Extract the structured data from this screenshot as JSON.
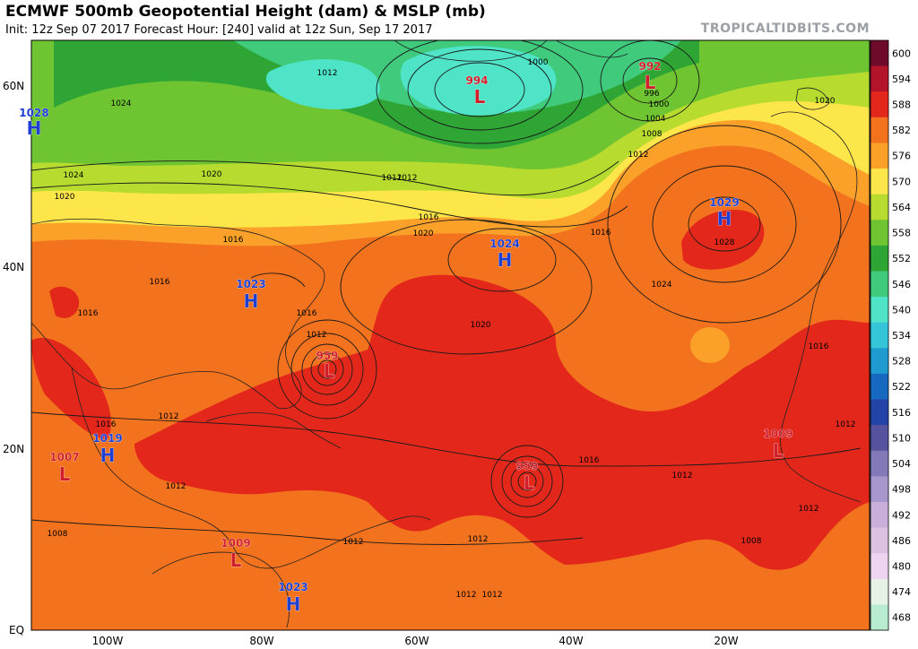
{
  "header": {
    "title": "ECMWF 500mb Geopotential Height (dam) & MSLP (mb)",
    "subtitle": "Init: 12z Sep 07 2017   Forecast Hour: [240]   valid at 12z Sun, Sep 17 2017",
    "credit": "TROPICALTIDBITS.COM"
  },
  "colorbar": {
    "levels": [
      {
        "label": "600",
        "color": "#6e0a2a"
      },
      {
        "label": "594",
        "color": "#b4142a"
      },
      {
        "label": "588",
        "color": "#e3281b"
      },
      {
        "label": "582",
        "color": "#f3721d"
      },
      {
        "label": "576",
        "color": "#fba12a"
      },
      {
        "label": "570",
        "color": "#fde64a"
      },
      {
        "label": "564",
        "color": "#b7dc2f"
      },
      {
        "label": "558",
        "color": "#6ec431"
      },
      {
        "label": "552",
        "color": "#2ea534"
      },
      {
        "label": "546",
        "color": "#3fca7c"
      },
      {
        "label": "540",
        "color": "#4fe3c8"
      },
      {
        "label": "534",
        "color": "#35c5d8"
      },
      {
        "label": "528",
        "color": "#1f9bd0"
      },
      {
        "label": "522",
        "color": "#1668c0"
      },
      {
        "label": "516",
        "color": "#2344a6"
      },
      {
        "label": "510",
        "color": "#57529e"
      },
      {
        "label": "504",
        "color": "#8479b8"
      },
      {
        "label": "498",
        "color": "#a897cc"
      },
      {
        "label": "492",
        "color": "#c7afd9"
      },
      {
        "label": "486",
        "color": "#dcc1e3"
      },
      {
        "label": "480",
        "color": "#efd4f1"
      },
      {
        "label": "474",
        "color": "#e6f2e6"
      },
      {
        "label": "468",
        "color": "#b8ecd0"
      }
    ]
  },
  "axes": {
    "lat_labels": [
      "60N",
      "40N",
      "20N",
      "EQ"
    ],
    "lon_labels": [
      "100W",
      "80W",
      "60W",
      "40W",
      "20W"
    ]
  },
  "pressure_centers": [
    {
      "type": "H",
      "value": "1028"
    },
    {
      "type": "H",
      "value": "1023"
    },
    {
      "type": "H",
      "value": "1019"
    },
    {
      "type": "L",
      "value": "1007"
    },
    {
      "type": "L",
      "value": "1009"
    },
    {
      "type": "H",
      "value": "1023"
    },
    {
      "type": "L",
      "value": "959"
    },
    {
      "type": "L",
      "value": "959"
    },
    {
      "type": "H",
      "value": "1024"
    },
    {
      "type": "H",
      "value": "1029"
    },
    {
      "type": "L",
      "value": "994"
    },
    {
      "type": "L",
      "value": "992"
    },
    {
      "type": "L",
      "value": "1009"
    }
  ],
  "isobar_labels": [
    "1012",
    "1024",
    "1020",
    "1016",
    "1012",
    "1016",
    "1016",
    "1020",
    "1016",
    "1020",
    "1016",
    "1024",
    "1020",
    "1012",
    "1008",
    "1012",
    "1016",
    "1012",
    "1012",
    "1016",
    "1012",
    "1008",
    "1012",
    "1012",
    "1012",
    "1016",
    "1000",
    "996",
    "1000",
    "1004",
    "1008",
    "1012",
    "1020",
    "1028",
    "1024",
    "1016",
    "1012",
    "1012",
    "1012"
  ]
}
